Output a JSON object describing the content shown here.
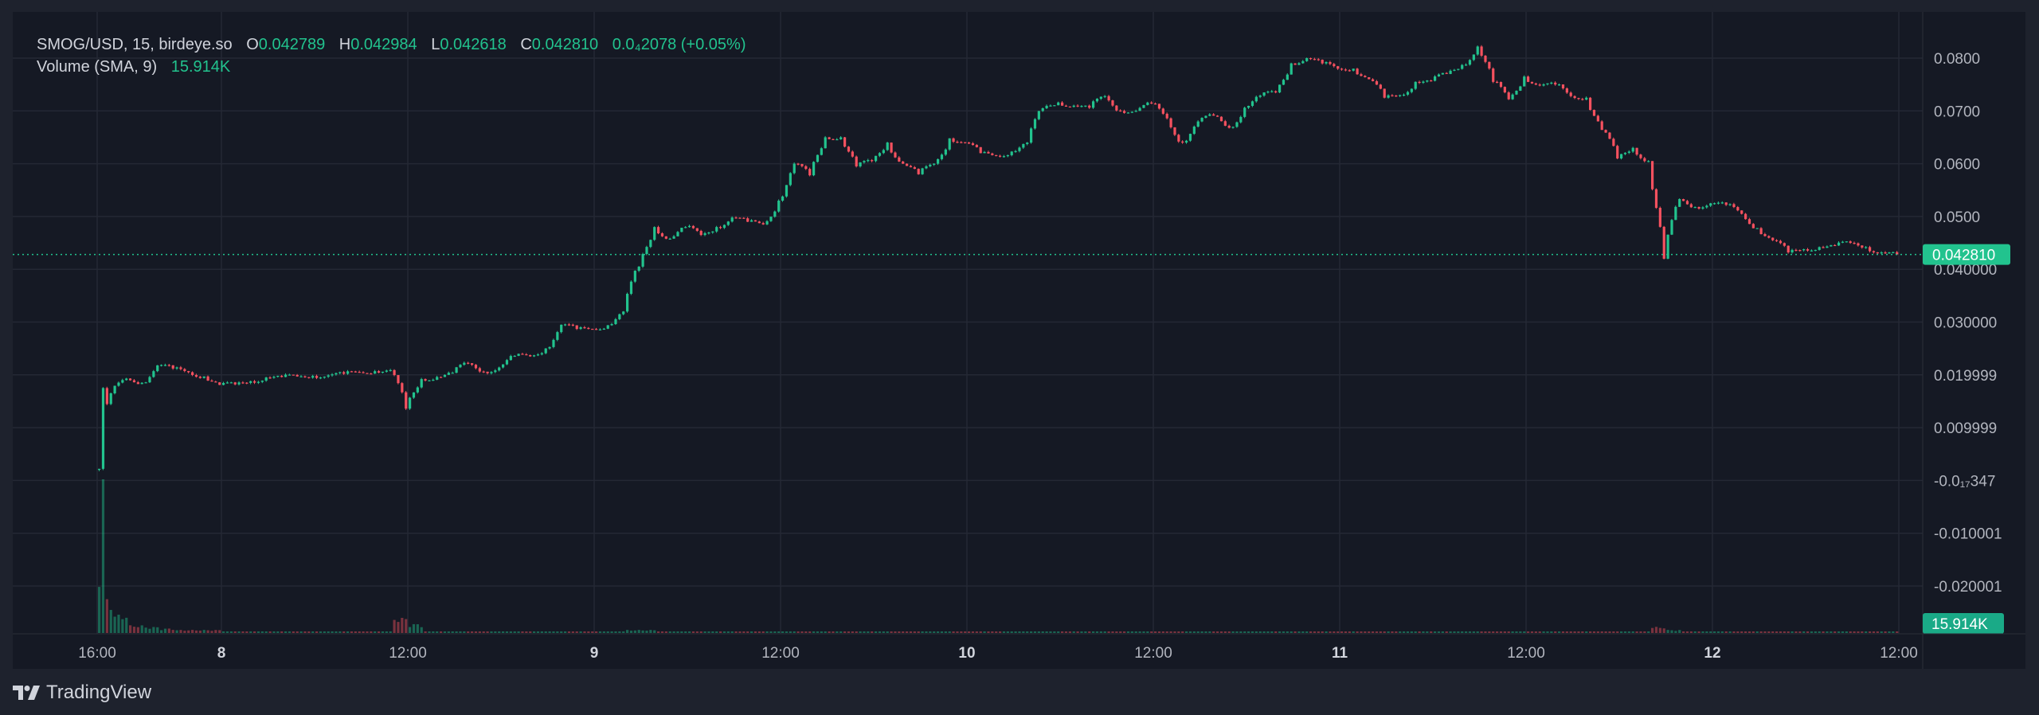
{
  "legend": {
    "symbol": "SMOG/USD, 15, birdeye.so",
    "open_label": "O",
    "open": "0.042789",
    "high_label": "H",
    "high": "0.042984",
    "low_label": "L",
    "low": "0.042618",
    "close_label": "C",
    "close": "0.042810",
    "change": "0.0₄2078 (+0.05%)",
    "volume_label": "Volume (SMA, 9)",
    "volume_value": "15.914K"
  },
  "price_axis": {
    "ticks": [
      {
        "value": 0.08,
        "label": "0.0800"
      },
      {
        "value": 0.07,
        "label": "0.0700"
      },
      {
        "value": 0.06,
        "label": "0.0600"
      },
      {
        "value": 0.05,
        "label": "0.0500"
      },
      {
        "value": 0.04,
        "label": "0.040000"
      },
      {
        "value": 0.03,
        "label": "0.030000"
      },
      {
        "value": 0.02,
        "label": "0.019999"
      },
      {
        "value": 0.01,
        "label": "0.009999"
      },
      {
        "value": 0.0,
        "label": "-0.0₁₇347"
      },
      {
        "value": -0.01,
        "label": "-0.010001"
      },
      {
        "value": -0.02,
        "label": "-0.020001"
      }
    ],
    "last_price_label": "0.042810",
    "volume_label": "15.914K"
  },
  "time_axis": {
    "ticks": [
      {
        "label": "16:00",
        "day": false
      },
      {
        "label": "8",
        "day": true
      },
      {
        "label": "12:00",
        "day": false
      },
      {
        "label": "9",
        "day": true
      },
      {
        "label": "12:00",
        "day": false
      },
      {
        "label": "10",
        "day": true
      },
      {
        "label": "12:00",
        "day": false
      },
      {
        "label": "11",
        "day": true
      },
      {
        "label": "12:00",
        "day": false
      },
      {
        "label": "12",
        "day": true
      },
      {
        "label": "12:00",
        "day": false
      }
    ]
  },
  "colors": {
    "up": "#22c38e",
    "down": "#f5515f",
    "background": "#151924",
    "grid": "#242834",
    "last_price": "#22c38e"
  },
  "branding": {
    "logo_text": "TradingView"
  },
  "chart_data": {
    "type": "candlestick",
    "interval": "15",
    "first_open": 0.002,
    "last_price": 0.04281,
    "ylim": [
      -0.025,
      0.09
    ],
    "grid": true,
    "hourly_close_start": "7 16:00",
    "hourly_close": [
      0.0165,
      0.0193,
      0.0185,
      0.0218,
      0.0212,
      0.0205,
      0.0197,
      0.0181,
      0.0182,
      0.0188,
      0.0195,
      0.0196,
      0.0197,
      0.0198,
      0.0199,
      0.0202,
      0.0205,
      0.0207,
      0.0209,
      0.0136,
      0.0192,
      0.0196,
      0.0204,
      0.0222,
      0.0206,
      0.0214,
      0.0236,
      0.0235,
      0.025,
      0.0295,
      0.0287,
      0.0287,
      0.0294,
      0.032,
      0.0405,
      0.048,
      0.0458,
      0.048,
      0.0465,
      0.048,
      0.0498,
      0.049,
      0.0485,
      0.053,
      0.06,
      0.0578,
      0.065,
      0.065,
      0.0595,
      0.0605,
      0.064,
      0.06,
      0.058,
      0.06,
      0.0648,
      0.064,
      0.062,
      0.0615,
      0.0623,
      0.064,
      0.0705,
      0.0716,
      0.071,
      0.0706,
      0.0728,
      0.07,
      0.07,
      0.0714,
      0.0686,
      0.064,
      0.068,
      0.0691,
      0.0668,
      0.0706,
      0.0729,
      0.0735,
      0.079,
      0.08,
      0.079,
      0.078,
      0.078,
      0.076,
      0.0725,
      0.073,
      0.0755,
      0.0757,
      0.077,
      0.0787,
      0.0822,
      0.0755,
      0.0722,
      0.0765,
      0.0748,
      0.075,
      0.0728,
      0.0725,
      0.0664,
      0.061,
      0.063,
      0.0605,
      0.042,
      0.0533,
      0.0518,
      0.0525,
      0.0522,
      0.0505,
      0.0478,
      0.0455,
      0.0432,
      0.0438,
      0.0442,
      0.0445,
      0.045,
      0.0442,
      0.0432,
      0.04281
    ],
    "volume_relative_hourly": [
      1.0,
      0.12,
      0.05,
      0.04,
      0.03,
      0.02,
      0.02,
      0.02,
      0.01,
      0.01,
      0.01,
      0.01,
      0.01,
      0.01,
      0.01,
      0.01,
      0.01,
      0.01,
      0.01,
      0.1,
      0.06,
      0.01,
      0.01,
      0.01,
      0.01,
      0.01,
      0.01,
      0.01,
      0.01,
      0.01,
      0.01,
      0.01,
      0.01,
      0.01,
      0.02,
      0.02,
      0.01,
      0.01,
      0.01,
      0.01,
      0.01,
      0.01,
      0.01,
      0.01,
      0.01,
      0.01,
      0.01,
      0.01,
      0.01,
      0.01,
      0.01,
      0.01,
      0.01,
      0.01,
      0.01,
      0.01,
      0.01,
      0.01,
      0.01,
      0.01,
      0.01,
      0.01,
      0.01,
      0.01,
      0.01,
      0.01,
      0.01,
      0.01,
      0.01,
      0.01,
      0.01,
      0.01,
      0.01,
      0.01,
      0.01,
      0.01,
      0.01,
      0.01,
      0.01,
      0.01,
      0.01,
      0.01,
      0.01,
      0.01,
      0.01,
      0.01,
      0.01,
      0.01,
      0.01,
      0.01,
      0.01,
      0.01,
      0.01,
      0.01,
      0.01,
      0.01,
      0.01,
      0.01,
      0.01,
      0.01,
      0.04,
      0.02,
      0.01,
      0.01,
      0.01,
      0.01,
      0.01,
      0.01,
      0.01,
      0.01,
      0.01,
      0.01,
      0.01,
      0.01,
      0.01,
      0.01
    ]
  }
}
